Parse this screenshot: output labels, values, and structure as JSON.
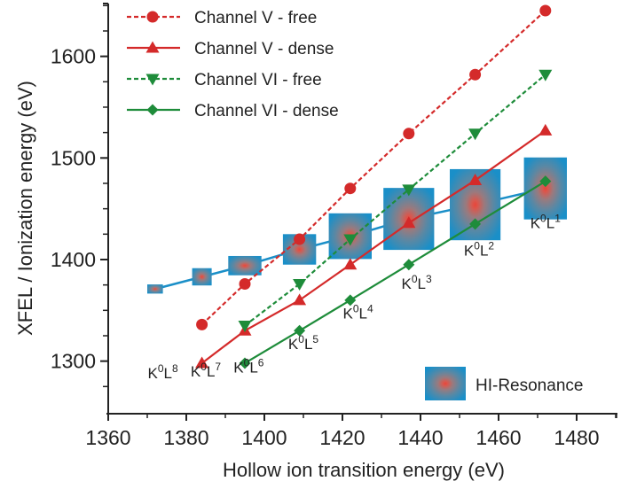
{
  "chart_data": {
    "type": "scatter",
    "title": "",
    "xlabel": "Hollow ion transition energy (eV)",
    "ylabel": "XFEL / Ionization energy (eV)",
    "xlim": [
      1360,
      1490
    ],
    "ylim": [
      1250,
      1652
    ],
    "x_ticks": [
      1360,
      1380,
      1400,
      1420,
      1440,
      1460,
      1480
    ],
    "x_minor_step": 10,
    "y_ticks": [
      1300,
      1400,
      1500,
      1600
    ],
    "y_minor_step": 25,
    "grid": false,
    "legend_position": "top-left",
    "series": [
      {
        "name": "Channel V - free",
        "color": "#d42a2a",
        "marker": "circle",
        "line": "dashed",
        "x": [
          1384,
          1395,
          1409,
          1422,
          1437,
          1454,
          1472
        ],
        "y": [
          1336,
          1376,
          1420,
          1470,
          1524,
          1582,
          1645
        ]
      },
      {
        "name": "Channel V - dense",
        "color": "#d42a2a",
        "marker": "triangle-up",
        "line": "solid",
        "x": [
          1384,
          1395,
          1409,
          1422,
          1437,
          1454,
          1472
        ],
        "y": [
          1298,
          1330,
          1360,
          1395,
          1436,
          1478,
          1527
        ]
      },
      {
        "name": "Channel VI - free",
        "color": "#1e8c3a",
        "marker": "triangle-down",
        "line": "dashed",
        "x": [
          1395,
          1409,
          1422,
          1437,
          1454,
          1472
        ],
        "y": [
          1335,
          1376,
          1420,
          1469,
          1524,
          1582
        ]
      },
      {
        "name": "Channel VI - dense",
        "color": "#1e8c3a",
        "marker": "diamond",
        "line": "solid",
        "x": [
          1395,
          1409,
          1422,
          1437,
          1454,
          1472
        ],
        "y": [
          1298,
          1330,
          1360,
          1395,
          1435,
          1477
        ]
      }
    ],
    "resonance": {
      "name": "HI-Resonance",
      "color": "#1a8fc8",
      "x": [
        1372,
        1384,
        1395,
        1409,
        1422,
        1437,
        1454,
        1472
      ],
      "y": [
        1371,
        1383,
        1394,
        1410,
        1423,
        1440,
        1454,
        1470
      ],
      "width_ev": [
        4,
        5,
        8.5,
        8.5,
        11,
        13,
        13,
        11
      ],
      "height_ev": [
        9,
        17,
        19,
        30,
        45,
        61,
        70,
        61
      ]
    },
    "annotations": [
      {
        "base": "K",
        "sup1": "0",
        "mid": "L",
        "sup2": "8",
        "x": 1374,
        "y": 1283
      },
      {
        "base": "K",
        "sup1": "0",
        "mid": "L",
        "sup2": "7",
        "x": 1385,
        "y": 1285
      },
      {
        "base": "K",
        "sup1": "0",
        "mid": "L",
        "sup2": "6",
        "x": 1396,
        "y": 1289
      },
      {
        "base": "K",
        "sup1": "0",
        "mid": "L",
        "sup2": "5",
        "x": 1410,
        "y": 1312
      },
      {
        "base": "K",
        "sup1": "0",
        "mid": "L",
        "sup2": "4",
        "x": 1424,
        "y": 1342
      },
      {
        "base": "K",
        "sup1": "0",
        "mid": "L",
        "sup2": "3",
        "x": 1439,
        "y": 1371
      },
      {
        "base": "K",
        "sup1": "0",
        "mid": "L",
        "sup2": "2",
        "x": 1455,
        "y": 1404
      },
      {
        "base": "K",
        "sup1": "0",
        "mid": "L",
        "sup2": "1",
        "x": 1472,
        "y": 1431
      }
    ]
  }
}
